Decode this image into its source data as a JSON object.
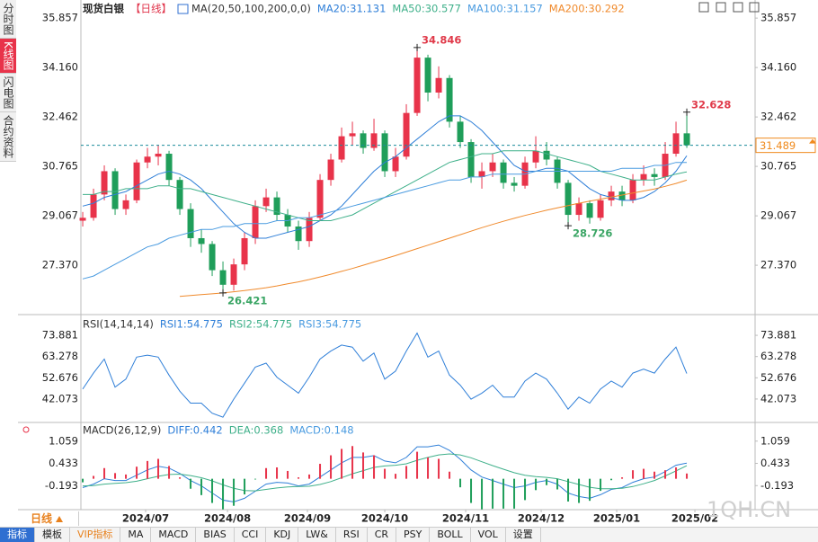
{
  "sidebar": {
    "tabs": [
      "分时图",
      "K线图",
      "闪电图",
      "合约资料"
    ],
    "active": 1
  },
  "period_selector": "日线",
  "watermark": "1QH.CN",
  "toolbar": {
    "tabs": [
      "指标",
      "模板",
      "VIP指标",
      "MA",
      "MACD",
      "BIAS",
      "CCI",
      "KDJ",
      "LW&",
      "RSI",
      "CR",
      "PSY",
      "BOLL",
      "VOL",
      "设置"
    ],
    "active": 0,
    "highlight": 2
  },
  "chart_data": [
    {
      "type": "candlestick",
      "title": "现货白银",
      "period": "【日线】",
      "period_color": "#e0334a",
      "indicator": "MA(20,50,100,200,0,0)",
      "xlim": [
        -0.17,
        62.33
      ],
      "ylim": [
        25.83,
        36.17
      ],
      "yticks": [
        {
          "value": 35.857,
          "label": "35.857"
        },
        {
          "value": 34.16,
          "label": "34.160"
        },
        32.462,
        30.765,
        29.067,
        {
          "value": 27.37,
          "label": "27.370"
        }
      ],
      "up_color": "#e8334a",
      "down_color": "#1f9e5a",
      "last": 31.489,
      "last_color": "#1a8c99",
      "last_label_color": "#f08a1c",
      "annotations": [
        {
          "x": 31,
          "value": 34.846,
          "color": "#e03a4a",
          "position": "above"
        },
        {
          "x": 56,
          "value": 32.628,
          "color": "#e03a4a",
          "position": "above"
        },
        {
          "x": 45,
          "value": 28.726,
          "color": "#3aa564",
          "position": "below"
        },
        {
          "x": 13,
          "value": 26.421,
          "color": "#3aa564",
          "position": "below"
        }
      ],
      "ohlc": [
        [
          28.9,
          29.2,
          28.7,
          29.0
        ],
        [
          29.0,
          30.0,
          28.9,
          29.8
        ],
        [
          29.8,
          30.8,
          29.6,
          30.6
        ],
        [
          30.6,
          30.7,
          29.1,
          29.3
        ],
        [
          29.3,
          29.8,
          29.1,
          29.6
        ],
        [
          29.6,
          31.0,
          29.5,
          30.9
        ],
        [
          30.9,
          31.4,
          30.7,
          31.1
        ],
        [
          31.1,
          31.5,
          30.8,
          31.2
        ],
        [
          31.2,
          31.3,
          30.1,
          30.3
        ],
        [
          30.3,
          30.4,
          29.1,
          29.3
        ],
        [
          29.3,
          29.5,
          28.0,
          28.3
        ],
        [
          28.3,
          28.6,
          27.8,
          28.1
        ],
        [
          28.1,
          28.2,
          27.0,
          27.2
        ],
        [
          27.2,
          27.5,
          26.421,
          26.7
        ],
        [
          26.7,
          27.6,
          26.5,
          27.4
        ],
        [
          27.4,
          28.5,
          27.2,
          28.3
        ],
        [
          28.3,
          29.6,
          28.1,
          29.4
        ],
        [
          29.4,
          30.0,
          29.2,
          29.7
        ],
        [
          29.7,
          29.9,
          28.9,
          29.1
        ],
        [
          29.1,
          29.3,
          28.5,
          28.7
        ],
        [
          28.7,
          28.9,
          27.9,
          28.2
        ],
        [
          28.2,
          29.2,
          28.0,
          29.0
        ],
        [
          29.0,
          30.5,
          28.9,
          30.3
        ],
        [
          30.3,
          31.2,
          30.1,
          31.0
        ],
        [
          31.0,
          32.1,
          30.9,
          31.8
        ],
        [
          31.8,
          32.3,
          31.5,
          31.9
        ],
        [
          31.9,
          32.0,
          31.2,
          31.4
        ],
        [
          31.4,
          32.4,
          31.3,
          31.9
        ],
        [
          31.9,
          32.0,
          30.4,
          30.6
        ],
        [
          30.6,
          31.4,
          30.4,
          31.1
        ],
        [
          31.1,
          32.9,
          31.0,
          32.6
        ],
        [
          32.6,
          34.846,
          32.5,
          34.5
        ],
        [
          34.5,
          34.6,
          33.0,
          33.3
        ],
        [
          33.3,
          34.2,
          33.1,
          33.8
        ],
        [
          33.8,
          33.9,
          32.1,
          32.3
        ],
        [
          32.3,
          32.5,
          31.4,
          31.6
        ],
        [
          31.6,
          31.7,
          30.2,
          30.4
        ],
        [
          30.4,
          30.9,
          30.0,
          30.6
        ],
        [
          30.6,
          31.2,
          30.4,
          30.9
        ],
        [
          30.9,
          31.0,
          30.0,
          30.2
        ],
        [
          30.2,
          30.4,
          29.9,
          30.1
        ],
        [
          30.1,
          31.1,
          30.0,
          30.9
        ],
        [
          30.9,
          31.8,
          30.7,
          31.3
        ],
        [
          31.3,
          31.6,
          30.8,
          31.0
        ],
        [
          31.0,
          31.1,
          30.0,
          30.2
        ],
        [
          30.2,
          30.3,
          28.726,
          29.1
        ],
        [
          29.1,
          29.7,
          28.9,
          29.5
        ],
        [
          29.5,
          29.6,
          28.8,
          29.0
        ],
        [
          29.0,
          29.8,
          28.9,
          29.6
        ],
        [
          29.6,
          30.1,
          29.4,
          29.9
        ],
        [
          29.9,
          30.1,
          29.4,
          29.6
        ],
        [
          29.6,
          30.5,
          29.5,
          30.3
        ],
        [
          30.3,
          30.8,
          30.1,
          30.5
        ],
        [
          30.5,
          30.7,
          30.1,
          30.4
        ],
        [
          30.4,
          31.6,
          30.3,
          31.2
        ],
        [
          31.2,
          32.3,
          31.1,
          31.9
        ],
        [
          31.9,
          32.628,
          31.4,
          31.489
        ]
      ],
      "series": [
        {
          "name": "MA20:31.131",
          "color": "#2f7fd8",
          "values": [
            29.4,
            29.5,
            29.7,
            29.8,
            29.9,
            30.1,
            30.3,
            30.5,
            30.6,
            30.5,
            30.3,
            30.0,
            29.6,
            29.2,
            28.8,
            28.5,
            28.3,
            28.3,
            28.4,
            28.5,
            28.6,
            28.7,
            28.9,
            29.1,
            29.4,
            29.8,
            30.2,
            30.6,
            30.9,
            31.1,
            31.4,
            31.7,
            32.0,
            32.3,
            32.5,
            32.5,
            32.3,
            32.0,
            31.6,
            31.2,
            30.8,
            30.6,
            30.6,
            30.7,
            30.7,
            30.6,
            30.3,
            30.0,
            29.8,
            29.7,
            29.6,
            29.6,
            29.7,
            29.9,
            30.2,
            30.6,
            31.131
          ]
        },
        {
          "name": "MA50:30.577",
          "color": "#3fb08a",
          "values": [
            29.8,
            29.8,
            29.9,
            29.9,
            30.0,
            30.0,
            30.0,
            30.1,
            30.1,
            30.0,
            30.0,
            29.9,
            29.8,
            29.7,
            29.6,
            29.5,
            29.4,
            29.3,
            29.2,
            29.1,
            29.0,
            28.9,
            28.9,
            28.9,
            29.0,
            29.1,
            29.3,
            29.5,
            29.7,
            29.9,
            30.1,
            30.3,
            30.5,
            30.7,
            30.9,
            31.0,
            31.1,
            31.2,
            31.2,
            31.3,
            31.3,
            31.3,
            31.3,
            31.2,
            31.1,
            31.0,
            30.9,
            30.8,
            30.6,
            30.5,
            30.4,
            30.3,
            30.3,
            30.3,
            30.4,
            30.5,
            30.577
          ]
        },
        {
          "name": "MA100:31.157",
          "color": "#4a9be0",
          "values": [
            26.9,
            27.0,
            27.2,
            27.4,
            27.6,
            27.8,
            28.0,
            28.1,
            28.3,
            28.4,
            28.5,
            28.6,
            28.6,
            28.7,
            28.7,
            28.8,
            28.8,
            28.8,
            28.9,
            28.9,
            29.0,
            29.0,
            29.1,
            29.2,
            29.3,
            29.4,
            29.5,
            29.6,
            29.7,
            29.8,
            29.9,
            30.0,
            30.1,
            30.2,
            30.3,
            30.3,
            30.4,
            30.4,
            30.5,
            30.5,
            30.5,
            30.5,
            30.6,
            30.6,
            30.6,
            30.6,
            30.6,
            30.6,
            30.6,
            30.6,
            30.7,
            30.7,
            30.7,
            30.8,
            30.8,
            30.9,
            30.9
          ]
        },
        {
          "name": "MA200:30.292",
          "color": "#f08a2c",
          "values": [
            null,
            null,
            null,
            null,
            null,
            null,
            null,
            null,
            null,
            26.3,
            26.33,
            26.36,
            26.39,
            26.42,
            26.46,
            26.5,
            26.55,
            26.6,
            26.66,
            26.73,
            26.8,
            26.88,
            26.97,
            27.06,
            27.16,
            27.26,
            27.37,
            27.48,
            27.59,
            27.7,
            27.82,
            27.94,
            28.06,
            28.18,
            28.3,
            28.42,
            28.54,
            28.66,
            28.77,
            28.88,
            28.98,
            29.08,
            29.17,
            29.26,
            29.34,
            29.42,
            29.5,
            29.57,
            29.64,
            29.71,
            29.78,
            29.85,
            29.92,
            29.99,
            30.08,
            30.18,
            30.292
          ]
        }
      ]
    },
    {
      "type": "line",
      "indicator": "RSI(14,14,14)",
      "xlim": [
        -0.17,
        62.33
      ],
      "ylim": [
        31.26,
        81.99
      ],
      "yticks": [
        73.881,
        63.278,
        52.676,
        42.073
      ],
      "series": [
        {
          "name": "RSI1:54.775",
          "color": "#2f7fd8",
          "values": [
            47,
            55,
            62,
            48,
            52,
            63,
            64,
            63,
            54,
            46,
            40,
            40,
            35,
            33,
            42,
            50,
            58,
            60,
            53,
            49,
            45,
            53,
            62,
            66,
            69,
            68,
            61,
            65,
            52,
            56,
            66,
            75,
            63,
            66,
            54,
            49,
            42,
            45,
            49,
            43,
            43,
            51,
            55,
            52,
            45,
            37,
            43,
            40,
            47,
            51,
            48,
            55,
            57,
            55,
            62,
            68,
            54.775
          ]
        }
      ],
      "extra_legend": [
        {
          "name": "RSI2:54.775",
          "color": "#3fb08a"
        },
        {
          "name": "RSI3:54.775",
          "color": "#4a9be0"
        }
      ]
    },
    {
      "type": "macd",
      "indicator": "MACD(26,12,9)",
      "xlim": [
        -0.17,
        62.33
      ],
      "ylim": [
        -0.818,
        1.584
      ],
      "yticks": [
        1.059,
        0.433,
        -0.193
      ],
      "xticks": [
        {
          "value": 5.83,
          "label": "2024/07"
        },
        {
          "value": 13.42,
          "label": "2024/08"
        },
        {
          "value": 20.83,
          "label": "2024/09"
        },
        {
          "value": 28,
          "label": "2024/10"
        },
        {
          "value": 35.5,
          "label": "2024/11"
        },
        {
          "value": 42.5,
          "label": "2024/12"
        },
        {
          "value": 49.5,
          "label": "2025/01"
        },
        {
          "value": 56.75,
          "label": "2025/02"
        }
      ],
      "up_color": "#e8334a",
      "down_color": "#1f9e5a",
      "series": [
        {
          "name": "DIFF:0.442",
          "color": "#2f7fd8",
          "style": "line",
          "values": [
            -0.25,
            -0.15,
            0,
            -0.05,
            -0.05,
            0.1,
            0.25,
            0.35,
            0.3,
            0.15,
            -0.05,
            -0.2,
            -0.4,
            -0.6,
            -0.65,
            -0.55,
            -0.35,
            -0.15,
            -0.1,
            -0.12,
            -0.2,
            -0.15,
            0.05,
            0.25,
            0.45,
            0.6,
            0.6,
            0.65,
            0.5,
            0.45,
            0.6,
            0.9,
            0.9,
            0.95,
            0.8,
            0.55,
            0.25,
            0.05,
            -0.05,
            -0.15,
            -0.25,
            -0.2,
            -0.1,
            -0.05,
            -0.15,
            -0.4,
            -0.5,
            -0.55,
            -0.45,
            -0.3,
            -0.25,
            -0.1,
            0,
            0.05,
            0.2,
            0.38,
            0.442
          ]
        },
        {
          "name": "DEA:0.368",
          "color": "#3fb08a",
          "style": "line",
          "values": [
            -0.2,
            -0.19,
            -0.15,
            -0.13,
            -0.11,
            -0.07,
            0,
            0.07,
            0.12,
            0.13,
            0.09,
            0.03,
            -0.06,
            -0.17,
            -0.27,
            -0.33,
            -0.34,
            -0.3,
            -0.26,
            -0.23,
            -0.22,
            -0.21,
            -0.16,
            -0.08,
            0.03,
            0.14,
            0.23,
            0.32,
            0.36,
            0.38,
            0.42,
            0.52,
            0.6,
            0.67,
            0.7,
            0.67,
            0.59,
            0.48,
            0.37,
            0.27,
            0.17,
            0.1,
            0.06,
            0.04,
            0,
            -0.08,
            -0.16,
            -0.24,
            -0.28,
            -0.28,
            -0.27,
            -0.22,
            -0.14,
            -0.05,
            0.08,
            0.22,
            0.368
          ]
        },
        {
          "name": "MACD:0.148",
          "color": "#4a9be0",
          "style": "bar",
          "values": [
            -0.1,
            0.08,
            0.3,
            0.16,
            0.12,
            0.34,
            0.5,
            0.56,
            0.36,
            0.04,
            -0.28,
            -0.46,
            -0.68,
            -0.86,
            -0.76,
            -0.44,
            -0.02,
            0.3,
            0.32,
            0.22,
            0.04,
            0.12,
            0.42,
            0.66,
            0.84,
            0.92,
            0.74,
            0.66,
            0.28,
            0.14,
            0.36,
            0.76,
            0.6,
            0.56,
            0.2,
            -0.24,
            -0.68,
            -0.86,
            -0.84,
            -0.84,
            -0.84,
            -0.6,
            -0.32,
            -0.18,
            -0.3,
            -0.64,
            -0.68,
            -0.62,
            -0.34,
            -0.04,
            0.04,
            0.24,
            0.28,
            0.2,
            0.24,
            0.32,
            0.148
          ]
        }
      ]
    }
  ]
}
